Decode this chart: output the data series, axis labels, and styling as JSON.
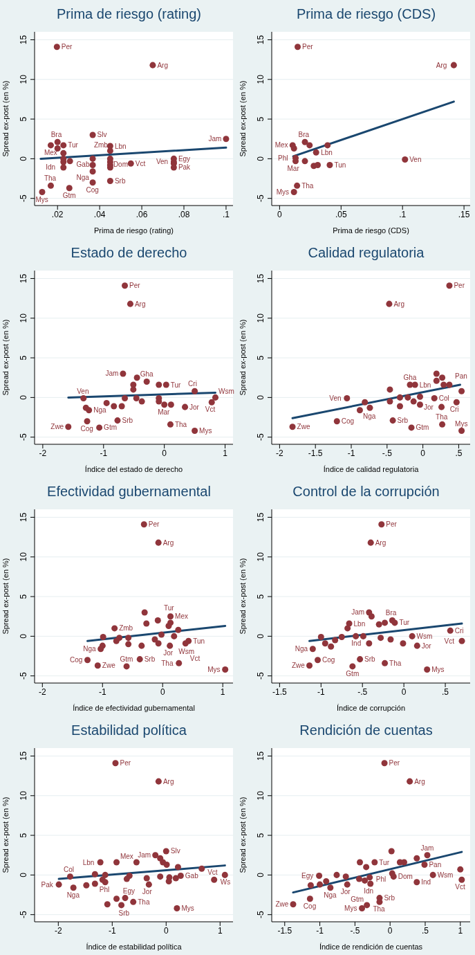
{
  "chart_data": [
    {
      "type": "scatter",
      "title": "Prima de riesgo (rating)",
      "xlabel": "Prima de riesgo (rating)",
      "ylabel": "Spread ex-post (en %)",
      "xlim": [
        0.0091,
        0.1033
      ],
      "xticks": [
        {
          "value": 0.02,
          "label": ".02"
        },
        {
          "value": 0.04,
          "label": ".04"
        },
        {
          "value": 0.06,
          "label": ".06"
        },
        {
          "value": 0.08,
          "label": ".08"
        },
        {
          "value": 0.1,
          "label": ".1"
        }
      ],
      "ylim": [
        -5.9,
        16
      ],
      "yticks": [
        -5,
        0,
        5,
        10,
        15
      ],
      "grid": "y",
      "marker": "circle",
      "series": [
        {
          "type": "scatter",
          "color": "#90353b",
          "x": [
            0.0197,
            0.0652,
            0.1,
            0.0367,
            0.045,
            0.045,
            0.02,
            0.0168,
            0.0228,
            0.02,
            0.0228,
            0.0228,
            0.0228,
            0.0228,
            0.0259,
            0.0752,
            0.0752,
            0.0752,
            0.0752,
            0.0367,
            0.0367,
            0.0367,
            0.0367,
            0.045,
            0.045,
            0.045,
            0.045,
            0.045,
            0.0548,
            0.0168,
            0.0256,
            0.0127
          ],
          "values": [
            14.1,
            11.8,
            2.5,
            3.0,
            1.6,
            1.0,
            2.1,
            1.7,
            1.7,
            1.3,
            0.7,
            0,
            -0.4,
            -1.1,
            -0.3,
            0,
            -0.4,
            -0.6,
            -1.1,
            0,
            -0.8,
            -1.6,
            -3.0,
            0,
            -0.4,
            -0.8,
            -1.1,
            -2.8,
            -0.6,
            -3.4,
            -3.7,
            -4.2
          ],
          "value_labels": [
            "Per",
            "Arg",
            "Jam",
            "Slv",
            "Lbn",
            "Zmb",
            "Bra",
            "Mex",
            "Tur",
            null,
            null,
            null,
            null,
            "Idn",
            null,
            "Egy",
            "Ven",
            null,
            "Pak",
            "Gab",
            null,
            "Nga",
            "Cog",
            "Dom",
            null,
            null,
            null,
            "Srb",
            "Vct",
            "Tha",
            "Gtm",
            "Mys"
          ]
        },
        {
          "type": "line",
          "color": "#1a476f",
          "marker": "none",
          "x": [
            0.012,
            0.1
          ],
          "values": [
            0,
            1.4
          ]
        }
      ]
    },
    {
      "type": "scatter",
      "title": "Prima de riesgo (CDS)",
      "xlabel": "Prima de riesgo (CDS)",
      "ylabel": "Spread ex-post (en %)",
      "xlim": [
        -0.0064,
        0.155
      ],
      "xticks": [
        0,
        {
          "value": 0.05,
          "label": ".05"
        },
        {
          "value": 0.1,
          "label": ".1"
        },
        {
          "value": 0.15,
          "label": ".15"
        }
      ],
      "ylim": [
        -5.9,
        16
      ],
      "yticks": [
        -5,
        0,
        5,
        10,
        15
      ],
      "grid": "y",
      "marker": "circle",
      "series": [
        {
          "type": "scatter",
          "color": "#90353b",
          "x": [
            0.0147,
            0.1417,
            0.102,
            0.0106,
            0.0206,
            0.0244,
            0.039,
            0.0117,
            0.0297,
            0.013,
            0.013,
            0.0206,
            0.0278,
            0.031,
            0.0408,
            0.0142,
            0.0117
          ],
          "values": [
            14.1,
            11.8,
            -0.1,
            1.7,
            2.1,
            1.7,
            1.7,
            1.3,
            0.8,
            0.1,
            -0.3,
            -0.3,
            -0.9,
            -0.8,
            -0.8,
            -3.4,
            -4.2
          ],
          "value_labels": [
            "Per",
            "Arg",
            "Ven",
            "Mex",
            "Bra",
            null,
            "Lbn",
            null,
            null,
            "Phl",
            null,
            "Mar",
            null,
            null,
            "Tun",
            "Tha",
            "Mys"
          ]
        },
        {
          "type": "line",
          "color": "#1a476f",
          "marker": "none",
          "x": [
            0.0111,
            0.1417
          ],
          "values": [
            0.3,
            7.2
          ]
        }
      ]
    },
    {
      "type": "scatter",
      "title": "Estado de derecho",
      "xlabel": "Índice del estado de derecho",
      "ylabel": "Spread ex-post (en %)",
      "xlim": [
        -2.135,
        1.13
      ],
      "xticks": [
        -2,
        -1,
        0,
        1
      ],
      "ylim": [
        -5.9,
        16
      ],
      "yticks": [
        -5,
        0,
        5,
        10,
        15
      ],
      "grid": "y",
      "marker": "circle",
      "series": [
        {
          "type": "scatter",
          "color": "#90353b",
          "x": [
            -0.65,
            -0.56,
            -0.68,
            -0.45,
            -0.51,
            -0.29,
            0.03,
            -0.09,
            -0.51,
            -1.33,
            -1.29,
            -1.24,
            -0.95,
            -0.83,
            -0.7,
            -0.65,
            -0.46,
            -0.37,
            -0.09,
            -0.09,
            0,
            0.11,
            0.34,
            0.5,
            0.84,
            0.78,
            -0.77,
            -1.27,
            -1.58,
            -1.07,
            0.1,
            0.5
          ],
          "values": [
            14.1,
            11.8,
            3.0,
            2.5,
            1.6,
            2.0,
            1.6,
            1.6,
            1.0,
            -0.1,
            -1.3,
            -1.6,
            -0.7,
            -1.1,
            -1.1,
            -0.1,
            -0.1,
            -0.5,
            -0.1,
            -0.5,
            -0.9,
            -0.9,
            -1.2,
            0.8,
            0,
            -0.6,
            -2.9,
            -3.0,
            -3.7,
            -3.8,
            -3.4,
            -4.2
          ],
          "value_labels": [
            "Per",
            "Arg",
            "Jam",
            null,
            null,
            "Gha",
            "Tur",
            null,
            null,
            "Ven",
            null,
            "Nga",
            null,
            null,
            null,
            null,
            null,
            null,
            null,
            null,
            "Mar",
            null,
            "Jor",
            "Cri",
            "Wsm",
            "Vct",
            "Srb",
            "Cog",
            "Zwe",
            "Gtm",
            "Tha",
            "Mys"
          ]
        },
        {
          "type": "line",
          "color": "#1a476f",
          "marker": "none",
          "x": [
            -1.58,
            0.84
          ],
          "values": [
            0,
            0.6
          ]
        }
      ]
    },
    {
      "type": "scatter",
      "title": "Calidad regulatoria",
      "xlabel": "Índice de calidad regulatoria",
      "ylabel": "Spread ex-post (en %)",
      "xlim": [
        -2.11,
        0.66
      ],
      "xticks": [
        -2,
        -1.5,
        -1,
        {
          "value": -0.5,
          "label": "-.5"
        },
        0,
        {
          "value": 0.5,
          "label": ".5"
        }
      ],
      "ylim": [
        -5.9,
        16
      ],
      "yticks": [
        -5,
        0,
        5,
        10,
        15
      ],
      "grid": "y",
      "marker": "circle",
      "series": [
        {
          "type": "scatter",
          "color": "#90353b",
          "x": [
            0.37,
            -0.47,
            -1.82,
            -1.2,
            -1.06,
            -0.88,
            -0.81,
            -0.74,
            -0.46,
            -0.46,
            -0.18,
            -0.11,
            -0.42,
            -0.16,
            -0.32,
            -0.32,
            -0.21,
            -0.13,
            -0.04,
            -0.04,
            0.16,
            0.19,
            0.27,
            0.19,
            0.29,
            0.37,
            0.54,
            0.47,
            0.26,
            0.27,
            0.54
          ],
          "values": [
            14.1,
            11.8,
            -3.7,
            -3.0,
            -0.1,
            -1.6,
            -0.6,
            -1.3,
            1.0,
            -0.5,
            1.6,
            1.6,
            -2.9,
            -3.8,
            0,
            -1.1,
            0,
            -0.5,
            0.1,
            -0.9,
            -0.1,
            3.0,
            2.5,
            2.1,
            1.6,
            1.6,
            0.8,
            -0.6,
            -1.2,
            -3.4,
            -4.2
          ],
          "value_labels": [
            "Per",
            "Arg",
            "Zwe",
            "Cog",
            "Ven",
            "Nga",
            null,
            null,
            null,
            null,
            "Gha",
            "Lbn",
            "Srb",
            "Gtm",
            null,
            null,
            null,
            null,
            null,
            null,
            "Col",
            null,
            null,
            null,
            null,
            null,
            "Pan",
            "Cri",
            "Jor",
            "Tha",
            "Mys"
          ]
        },
        {
          "type": "line",
          "color": "#1a476f",
          "marker": "none",
          "x": [
            -1.82,
            0.52
          ],
          "values": [
            -2.6,
            1.6
          ]
        }
      ]
    },
    {
      "type": "scatter",
      "title": "Efectividad gubernamental",
      "xlabel": "Índice de efectividad gubernamental",
      "ylabel": "Spread ex-post (en %)",
      "xlim": [
        -2.13,
        1.17
      ],
      "xticks": [
        -2,
        -1,
        0,
        1
      ],
      "ylim": [
        -5.9,
        16
      ],
      "yticks": [
        -5,
        0,
        5,
        10,
        15
      ],
      "grid": "y",
      "marker": "circle",
      "series": [
        {
          "type": "scatter",
          "color": "#90353b",
          "x": [
            -0.31,
            -0.07,
            -0.3,
            0.13,
            -0.08,
            -0.27,
            0.13,
            0.1,
            0.26,
            -0.8,
            -0.99,
            -1.0,
            -1.03,
            -0.72,
            -0.77,
            -0.57,
            -0.57,
            -0.35,
            -0.13,
            -0.07,
            -0.02,
            0.19,
            0.12,
            0.43,
            0.38,
            -0.38,
            -1.25,
            -1.08,
            -0.6,
            0.27,
            1.04
          ],
          "values": [
            14.1,
            11.8,
            3.0,
            2.5,
            2.0,
            1.6,
            1.7,
            1.3,
            0.8,
            1.0,
            -0.1,
            -1.2,
            -1.6,
            -0.2,
            -0.6,
            -0.2,
            -1.0,
            -1.2,
            -0.4,
            -0.9,
            0.2,
            0,
            -1.2,
            -0.6,
            -0.9,
            -2.9,
            -3.0,
            -3.7,
            -3.8,
            -3.4,
            -4.2
          ],
          "value_labels": [
            "Per",
            "Arg",
            null,
            "Mex",
            null,
            null,
            "Tur",
            null,
            null,
            "Zmb",
            null,
            null,
            "Nga",
            null,
            null,
            null,
            null,
            null,
            null,
            null,
            null,
            "Wsm",
            "Jor",
            "Tun",
            "Vct",
            "Srb",
            "Cog",
            "Zwe",
            "Gtm",
            "Tha",
            "Mys"
          ]
        },
        {
          "type": "line",
          "color": "#1a476f",
          "marker": "none",
          "x": [
            -1.25,
            1.04
          ],
          "values": [
            -0.6,
            1.3
          ]
        }
      ]
    },
    {
      "type": "scatter",
      "title": "Control de la corrupción",
      "xlabel": "Índice de corrupción",
      "ylabel": "Spread ex-post (en %)",
      "xlim": [
        -1.595,
        0.8
      ],
      "xticks": [
        -1.5,
        -1,
        {
          "value": -0.5,
          "label": "-.5"
        },
        0,
        {
          "value": 0.5,
          "label": ".5"
        }
      ],
      "ylim": [
        -5.9,
        16
      ],
      "yticks": [
        -5,
        0,
        5,
        10,
        15
      ],
      "grid": "y",
      "marker": "circle",
      "series": [
        {
          "type": "scatter",
          "color": "#90353b",
          "x": [
            -0.27,
            -0.4,
            -0.42,
            -0.39,
            -0.14,
            -0.23,
            -0.11,
            -0.3,
            -0.66,
            -0.68,
            -1.0,
            -0.95,
            -0.88,
            -0.83,
            -0.75,
            -0.58,
            -0.49,
            -0.28,
            -0.42,
            -0.16,
            -0.01,
            0.1,
            0.16,
            0.56,
            0.7,
            -1.1,
            -1.04,
            -1.14,
            -0.53,
            -0.62,
            -0.23,
            0.28
          ],
          "values": [
            14.1,
            11.8,
            3.0,
            2.5,
            2.0,
            1.7,
            1.7,
            1.5,
            1.6,
            1.0,
            -0.1,
            -0.9,
            -1.3,
            -0.5,
            -0.1,
            0,
            0,
            -0.2,
            -0.9,
            -0.4,
            -0.9,
            0,
            -1.2,
            0.7,
            -0.6,
            -1.6,
            -3.0,
            -3.7,
            -2.9,
            -3.8,
            -3.4,
            -4.2
          ],
          "value_labels": [
            "Per",
            "Arg",
            "Jam",
            null,
            "Bra",
            null,
            "Tur",
            null,
            "Lbn",
            null,
            null,
            null,
            null,
            null,
            null,
            null,
            null,
            null,
            "Ind",
            null,
            null,
            "Wsm",
            "Jor",
            "Cri",
            "Vct",
            "Nga",
            "Cog",
            "Zwe",
            "Srb",
            "Gtm",
            "Tha",
            "Mys"
          ]
        },
        {
          "type": "line",
          "color": "#1a476f",
          "marker": "none",
          "x": [
            -1.14,
            0.7
          ],
          "values": [
            -0.6,
            1.6
          ]
        }
      ]
    },
    {
      "type": "scatter",
      "title": "Estabilidad política",
      "xlabel": "Índice de estabilidad política",
      "ylabel": "Spread ex-post (en %)",
      "xlim": [
        -2.44,
        1.24
      ],
      "xticks": [
        -2,
        -1,
        0,
        1
      ],
      "ylim": [
        -5.9,
        16
      ],
      "yticks": [
        -5,
        0,
        5,
        10,
        15
      ],
      "grid": "y",
      "marker": "circle",
      "series": [
        {
          "type": "scatter",
          "color": "#90353b",
          "x": [
            -0.94,
            -0.14,
            0,
            -0.2,
            -0.11,
            -0.06,
            0.01,
            -0.55,
            -0.92,
            -1.22,
            0.22,
            0.66,
            -0.68,
            -1.32,
            -1.13,
            -1.78,
            -1.99,
            -1.72,
            -1.48,
            -1.32,
            -1.18,
            -1.13,
            -0.73,
            -0.36,
            -0.32,
            -0.11,
            0.06,
            0.05,
            0.18,
            0.27,
            0.89,
            1.09,
            -0.76,
            -0.92,
            -0.61,
            -0.83,
            -1.09,
            0.2
          ],
          "values": [
            14.1,
            11.8,
            3.0,
            2.5,
            2.1,
            1.6,
            1.3,
            1.6,
            1.6,
            1.6,
            1.0,
            0.8,
            -0.1,
            0.1,
            0,
            -0.2,
            -1.2,
            -1.6,
            -1.3,
            -1.1,
            -0.6,
            -0.9,
            -0.5,
            -0.4,
            -1.2,
            -0.2,
            -0.3,
            -0.8,
            -0.4,
            -0.1,
            -0.6,
            0,
            -2.9,
            -3.0,
            -3.4,
            -3.8,
            -3.7,
            -4.2
          ],
          "value_labels": [
            "Per",
            "Arg",
            "Slv",
            "Jam",
            null,
            null,
            null,
            "Mex",
            null,
            "Lbn",
            null,
            null,
            "Egy",
            "Phl",
            null,
            "Col",
            "Pak",
            "Nga",
            null,
            null,
            null,
            null,
            null,
            null,
            "Jor",
            null,
            null,
            null,
            null,
            "Gab",
            "Vct",
            "Ws",
            "Srb",
            null,
            "Tha",
            null,
            null,
            "Mys"
          ]
        },
        {
          "type": "line",
          "color": "#1a476f",
          "marker": "none",
          "x": [
            -1.99,
            1.09
          ],
          "values": [
            -0.5,
            1.2
          ]
        }
      ]
    },
    {
      "type": "scatter",
      "title": "Rendición de cuentas",
      "xlabel": "Índice de rendición de cuentas",
      "ylabel": "Spread ex-post (en %)",
      "xlim": [
        -1.685,
        1.14
      ],
      "xticks": [
        -1.5,
        -1,
        {
          "value": -0.5,
          "label": "-.5"
        },
        0,
        {
          "value": 0.5,
          "label": ".5"
        },
        1
      ],
      "ylim": [
        -5.9,
        16
      ],
      "yticks": [
        -5,
        0,
        5,
        10,
        15
      ],
      "grid": "y",
      "marker": "circle",
      "series": [
        {
          "type": "scatter",
          "color": "#90353b",
          "x": [
            -0.08,
            0.28,
            0.02,
            0.53,
            0.38,
            0.14,
            0.2,
            -0.22,
            -0.43,
            -0.34,
            0.49,
            0.03,
            0.05,
            0.61,
            1.0,
            1.02,
            0.38,
            -1.01,
            -0.76,
            -1.13,
            -1.0,
            -0.91,
            -0.85,
            -0.63,
            -0.61,
            -0.44,
            -0.36,
            -0.29,
            -0.28,
            -1.38,
            -1.14,
            -0.15,
            -0.15,
            -0.33,
            -0.4
          ],
          "values": [
            14.1,
            11.8,
            3.0,
            2.5,
            2.1,
            1.6,
            1.6,
            1.6,
            1.6,
            1.0,
            1.3,
            0.2,
            -0.2,
            0,
            0.7,
            -0.6,
            -0.9,
            -0.1,
            0,
            -1.3,
            -1.2,
            -0.8,
            -1.6,
            -0.2,
            -1.2,
            -0.5,
            -0.7,
            -0.3,
            -1.1,
            -3.7,
            -3.0,
            -2.9,
            -3.4,
            -3.8,
            -4.2
          ],
          "value_labels": [
            "Per",
            "Arg",
            null,
            "Jam",
            null,
            null,
            null,
            "Tur",
            null,
            null,
            "Pan",
            "Phl",
            "Dom",
            "Wsm",
            null,
            "Vct",
            "Ind",
            "Egy",
            null,
            null,
            null,
            null,
            "Nga",
            null,
            "Jor",
            null,
            null,
            null,
            "Idn",
            "Zwe",
            "Cog",
            "Srb",
            "Tha",
            "Gtm",
            "Mys"
          ]
        },
        {
          "type": "line",
          "color": "#1a476f",
          "marker": "none",
          "x": [
            -1.38,
            1.02
          ],
          "values": [
            -2.2,
            2.9
          ]
        }
      ]
    }
  ]
}
